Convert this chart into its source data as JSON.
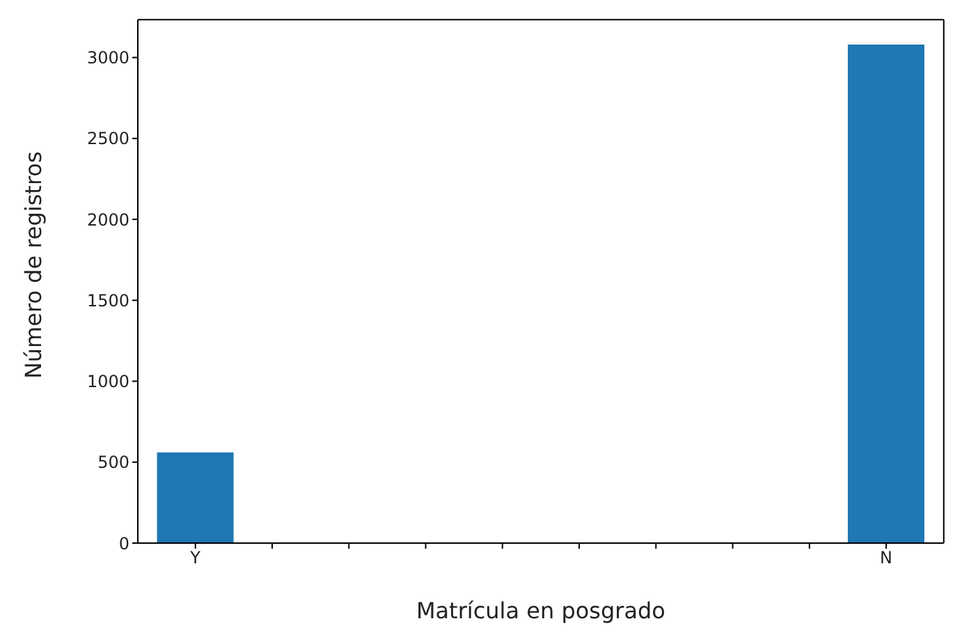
{
  "chart_data": {
    "type": "bar",
    "xlabel": "Matrícula en posgrado",
    "ylabel": "Número de registros",
    "categories": [
      "Y",
      null,
      null,
      null,
      null,
      null,
      null,
      null,
      null,
      "N"
    ],
    "values": [
      560,
      0,
      0,
      0,
      0,
      0,
      0,
      0,
      0,
      3080
    ],
    "color": "#1f77b4",
    "ylim": [
      0,
      3234
    ],
    "yticks": [
      0,
      500,
      1000,
      1500,
      2000,
      2500,
      3000
    ]
  }
}
